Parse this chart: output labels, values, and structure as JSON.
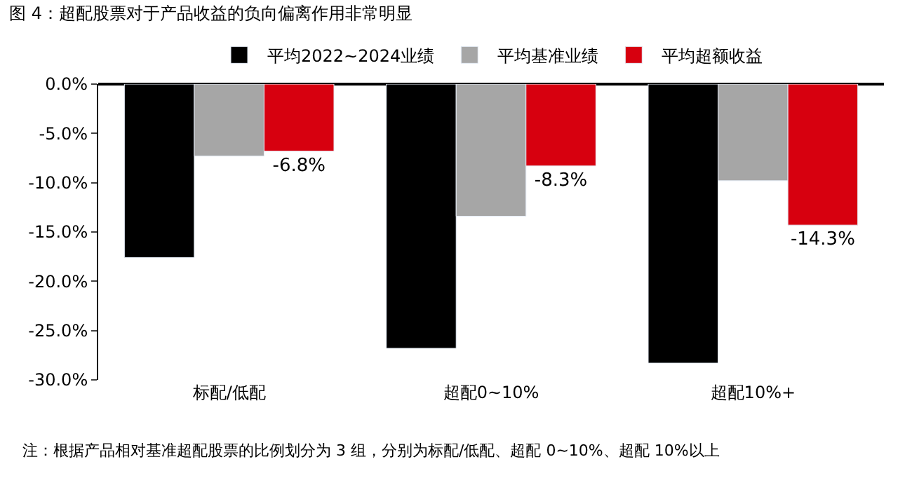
{
  "chart_data": {
    "type": "bar",
    "title": "图 4：超配股票对于产品收益的负向偏离作用非常明显",
    "categories": [
      "标配/低配",
      "超配0~10%",
      "超配10%+"
    ],
    "series": [
      {
        "name": "平均2022~2024业绩",
        "color": "#000000",
        "values": [
          -17.6,
          -26.8,
          -28.3
        ]
      },
      {
        "name": "平均基准业绩",
        "color": "#a6a6a6",
        "values": [
          -7.3,
          -13.4,
          -9.8
        ]
      },
      {
        "name": "平均超额收益",
        "color": "#d7000f",
        "values": [
          -6.8,
          -8.3,
          -14.3
        ],
        "value_labels": [
          "-6.8%",
          "-8.3%",
          "-14.3%"
        ]
      }
    ],
    "ylim": [
      -30,
      0
    ],
    "yticks": [
      {
        "value": 0,
        "label": "0.0%"
      },
      {
        "value": -5,
        "label": "-5.0%"
      },
      {
        "value": -10,
        "label": "-10.0%"
      },
      {
        "value": -15,
        "label": "-15.0%"
      },
      {
        "value": -20,
        "label": "-20.0%"
      },
      {
        "value": -25,
        "label": "-25.0%"
      },
      {
        "value": -30,
        "label": "-30.0%"
      }
    ],
    "legend": "top",
    "annotations": [
      "注：根据产品相对基准超配股票的比例划分为 3 组，分别为标配/低配、超配 0~10%、超配 10%以上"
    ]
  }
}
